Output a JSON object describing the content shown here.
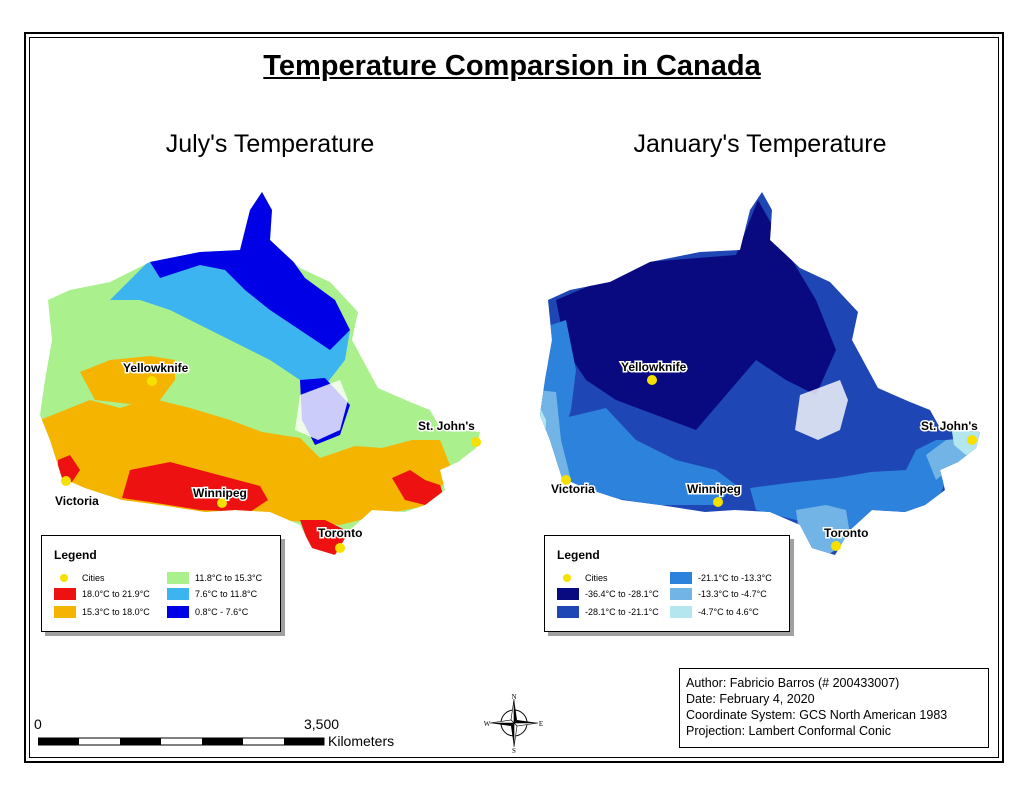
{
  "title": "Temperature Comparsion in Canada",
  "maps": [
    {
      "title": "July's Temperature",
      "cities": [
        "Yellowknife",
        "St. John's",
        "Victoria",
        "Winnipeg",
        "Toronto"
      ],
      "legend": {
        "title": "Legend",
        "cities_label": "Cities",
        "classes": [
          {
            "label": "18.0°C to 21.9°C",
            "color": "#ee1111"
          },
          {
            "label": "15.3°C to 18.0°C",
            "color": "#f5b400"
          },
          {
            "label": "11.8°C to 15.3°C",
            "color": "#aaf08c"
          },
          {
            "label": "7.6°C to 11.8°C",
            "color": "#3cb4f0"
          },
          {
            "label": "0.8°C - 7.6°C",
            "color": "#0000e6"
          }
        ]
      }
    },
    {
      "title": "January's Temperature",
      "cities": [
        "Yellowknife",
        "St. John's",
        "Victoria",
        "Winnipeg",
        "Toronto"
      ],
      "legend": {
        "title": "Legend",
        "cities_label": "Cities",
        "classes": [
          {
            "label": "-36.4°C to -28.1°C",
            "color": "#0a0a80"
          },
          {
            "label": "-28.1°C to -21.1°C",
            "color": "#1e46b4"
          },
          {
            "label": "-21.1°C to -13.3°C",
            "color": "#2d82dc"
          },
          {
            "label": "-13.3°C to -4.7°C",
            "color": "#73b4e6"
          },
          {
            "label": "-4.7°C to 4.6°C",
            "color": "#b4e6f0"
          }
        ]
      }
    }
  ],
  "compass": {
    "n": "N",
    "s": "S",
    "e": "E",
    "w": "W"
  },
  "scale_bar": {
    "start": "0",
    "end": "3,500",
    "unit": "Kilometers"
  },
  "info": {
    "author": "Author: Fabricio Barros (# 200433007)",
    "date": "Date: February 4, 2020",
    "coordinate_system": "Coordinate System: GCS North American 1983",
    "projection": "Projection: Lambert Conformal Conic"
  }
}
